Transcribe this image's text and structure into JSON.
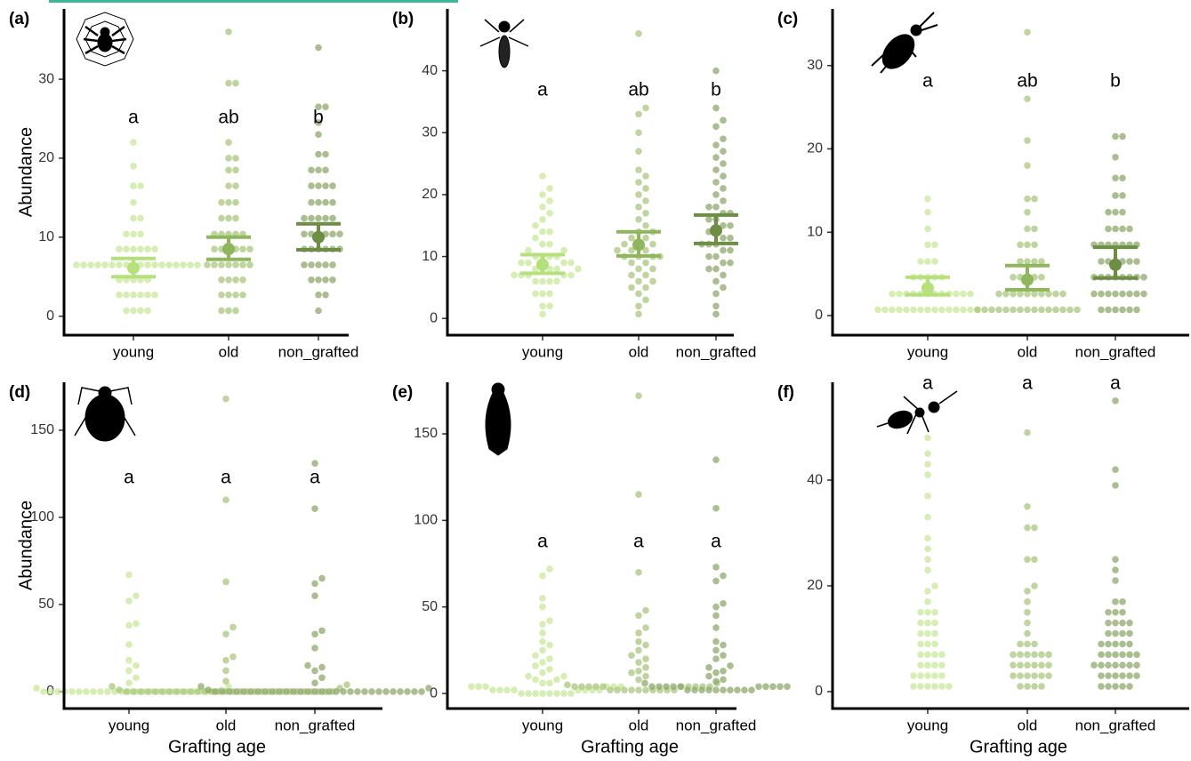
{
  "chart_data": [
    {
      "type": "beeswarm",
      "title": "(a)",
      "ylabel": "Abundance",
      "categories": [
        "young",
        "old",
        "non_grafted"
      ],
      "ylim": [
        -2.4,
        38.9
      ],
      "yticks": [
        0,
        10,
        20,
        30
      ],
      "colors": [
        "#c8e89a",
        "#aac67e",
        "#8fa86c"
      ],
      "mean_colors": [
        "#b6e07c",
        "#8fb65c",
        "#6d8e44"
      ],
      "letters": [
        "a",
        "ab",
        "b"
      ],
      "values": [
        [
          0.7,
          0.7,
          0.7,
          0.7,
          2.7,
          2.7,
          2.7,
          2.7,
          2.7,
          2.7,
          4.6,
          4.6,
          4.6,
          4.6,
          4.6,
          6.5,
          6.5,
          6.5,
          6.5,
          6.5,
          6.5,
          6.5,
          6.5,
          6.5,
          6.5,
          6.5,
          6.5,
          6.5,
          6.5,
          6.5,
          6.5,
          6.5,
          6.5,
          8.5,
          8.5,
          8.5,
          8.5,
          8.5,
          8.5,
          10.4,
          10.4,
          10.4,
          12.4,
          12.4,
          14.4,
          16.5,
          16.5,
          19,
          22
        ],
        [
          0.7,
          0.7,
          0.7,
          2.7,
          2.7,
          2.7,
          2.7,
          4.6,
          4.6,
          4.6,
          4.6,
          6.5,
          6.5,
          6.5,
          6.5,
          6.5,
          6.5,
          6.5,
          8.5,
          8.5,
          8.5,
          8.5,
          8.5,
          8.5,
          10.4,
          10.4,
          10.4,
          10.4,
          10.4,
          12.4,
          12.4,
          12.4,
          14.4,
          14.4,
          14.4,
          16.5,
          16.5,
          18.5,
          18.5,
          20,
          20,
          22,
          29.5,
          29.5,
          36
        ],
        [
          0.7,
          2.7,
          2.7,
          4.6,
          4.6,
          4.6,
          4.6,
          6.5,
          6.5,
          6.5,
          6.5,
          6.5,
          8.5,
          8.5,
          8.5,
          8.5,
          8.5,
          8.5,
          10.4,
          10.4,
          10.4,
          10.4,
          10.4,
          10.4,
          12.4,
          12.4,
          12.4,
          12.4,
          12.4,
          14.4,
          14.4,
          14.4,
          14.4,
          16.5,
          16.5,
          16.5,
          16.5,
          18.5,
          18.5,
          18.5,
          20.5,
          20.5,
          23,
          24.5,
          26.5,
          26.5,
          34
        ]
      ],
      "mean": [
        6.1,
        8.5,
        10.0
      ],
      "ci_low": [
        5.0,
        7.2,
        8.4
      ],
      "ci_high": [
        7.3,
        10.0,
        11.7
      ]
    },
    {
      "type": "beeswarm",
      "title": "(b)",
      "categories": [
        "young",
        "old",
        "non_grafted"
      ],
      "ylim": [
        -2.7,
        50
      ],
      "yticks": [
        0,
        10,
        20,
        30,
        40
      ],
      "colors": [
        "#c8e89a",
        "#aac67e",
        "#8fa86c"
      ],
      "mean_colors": [
        "#b6e07c",
        "#8fb65c",
        "#6d8e44"
      ],
      "letters": [
        "a",
        "ab",
        "b"
      ],
      "values": [
        [
          0.7,
          2,
          2,
          4,
          4,
          4,
          6,
          6,
          6,
          6,
          7,
          7,
          7,
          7,
          7,
          8,
          8,
          8,
          8,
          8,
          9,
          9,
          9,
          9,
          10,
          10,
          10,
          10,
          11,
          11,
          12,
          12,
          13,
          14,
          14,
          15,
          16,
          17,
          18,
          19,
          20,
          21,
          23
        ],
        [
          0.7,
          2,
          3,
          4,
          5,
          5,
          6,
          6,
          7,
          7,
          8,
          8,
          9,
          9,
          10,
          10,
          10,
          10,
          11,
          11,
          11,
          12,
          12,
          12,
          13,
          13,
          14,
          14,
          15,
          16,
          17,
          18,
          19,
          20,
          21,
          22,
          23,
          24,
          27,
          30,
          33,
          34,
          46
        ],
        [
          0.7,
          2,
          4,
          5,
          6,
          7,
          8,
          8,
          9,
          9,
          10,
          10,
          11,
          11,
          12,
          12,
          12,
          13,
          13,
          14,
          14,
          15,
          15,
          16,
          16,
          17,
          17,
          18,
          18,
          19,
          20,
          21,
          22,
          23,
          24,
          25,
          26,
          27,
          28,
          29,
          31,
          32,
          34,
          40
        ]
      ],
      "mean": [
        8.7,
        11.9,
        14.2
      ],
      "ci_low": [
        7.3,
        10.1,
        12.1
      ],
      "ci_high": [
        10.3,
        14.0,
        16.7
      ]
    },
    {
      "type": "beeswarm",
      "title": "(c)",
      "categories": [
        "young",
        "old",
        "non_grafted"
      ],
      "ylim": [
        -2.35,
        36.8
      ],
      "yticks": [
        0,
        10,
        20,
        30
      ],
      "colors": [
        "#c8e89a",
        "#aac67e",
        "#8fa86c"
      ],
      "mean_colors": [
        "#b6e07c",
        "#8fb65c",
        "#6d8e44"
      ],
      "letters": [
        "a",
        "ab",
        "b"
      ],
      "values": [
        [
          0.7,
          0.7,
          0.7,
          0.7,
          0.7,
          0.7,
          0.7,
          0.7,
          0.7,
          0.7,
          0.7,
          0.7,
          0.7,
          0.7,
          0.7,
          2.6,
          2.6,
          2.6,
          2.6,
          2.6,
          2.6,
          2.6,
          2.6,
          2.6,
          2.6,
          2.6,
          2.6,
          4.6,
          4.6,
          4.6,
          4.6,
          4.6,
          6.5,
          6.5,
          6.5,
          8.5,
          8.5,
          10.4,
          12.4,
          14
        ],
        [
          0.7,
          0.7,
          0.7,
          0.7,
          0.7,
          0.7,
          0.7,
          0.7,
          0.7,
          0.7,
          0.7,
          0.7,
          0.7,
          0.7,
          0.7,
          2.6,
          2.6,
          2.6,
          2.6,
          2.6,
          2.6,
          2.6,
          2.6,
          2.6,
          2.6,
          4.6,
          4.6,
          4.6,
          4.6,
          4.6,
          6.5,
          6.5,
          6.5,
          6.5,
          8.5,
          8.5,
          8.5,
          10.4,
          10.4,
          12.4,
          14,
          14,
          18,
          21,
          26,
          34
        ],
        [
          0.7,
          0.7,
          0.7,
          0.7,
          0.7,
          0.7,
          2.6,
          2.6,
          2.6,
          2.6,
          2.6,
          2.6,
          2.6,
          2.6,
          4.6,
          4.6,
          4.6,
          4.6,
          4.6,
          4.6,
          4.6,
          4.6,
          6.5,
          6.5,
          6.5,
          6.5,
          6.5,
          6.5,
          8.5,
          8.5,
          8.5,
          8.5,
          8.5,
          8.5,
          8.5,
          10.4,
          10.4,
          10.4,
          10.4,
          12.4,
          12.4,
          12.4,
          14.4,
          14.4,
          16.5,
          16.5,
          19,
          21.5,
          21.5
        ]
      ],
      "mean": [
        3.3,
        4.3,
        6.1
      ],
      "ci_low": [
        2.5,
        3.1,
        4.5
      ],
      "ci_high": [
        4.6,
        6.0,
        8.2
      ]
    },
    {
      "type": "beeswarm",
      "title": "(d)",
      "ylabel": "Abundance",
      "xlabel": "Grafting age",
      "categories": [
        "young",
        "old",
        "non_grafted"
      ],
      "ylim": [
        -9.7,
        177.5
      ],
      "yticks": [
        0,
        50,
        100,
        150
      ],
      "colors": [
        "#c8e89a",
        "#aac67e",
        "#8fa86c"
      ],
      "letters": [
        "a",
        "a",
        "a"
      ],
      "values": [
        [
          0,
          0,
          0,
          0,
          0,
          0,
          0,
          0,
          0,
          0,
          0,
          0,
          0,
          0,
          0,
          0,
          0,
          0,
          0,
          0,
          0,
          0,
          0,
          0,
          0,
          1,
          2,
          3,
          5,
          8,
          12,
          15,
          18,
          27,
          38,
          39,
          52,
          55,
          67
        ],
        [
          0,
          0,
          0,
          0,
          0,
          0,
          0,
          0,
          0,
          0,
          0,
          0,
          0,
          0,
          0,
          0,
          0,
          0,
          0,
          0,
          0,
          0,
          0,
          0,
          0,
          0,
          0,
          0,
          0,
          0,
          1,
          2,
          3,
          4,
          6,
          12,
          18,
          20,
          33,
          37,
          63,
          110,
          168
        ],
        [
          0,
          0,
          0,
          0,
          0,
          0,
          0,
          0,
          0,
          0,
          0,
          0,
          0,
          0,
          0,
          0,
          0,
          0,
          0,
          0,
          0,
          0,
          0,
          0,
          0,
          0,
          0,
          0,
          0,
          0,
          1,
          2,
          3,
          5,
          8,
          12,
          14,
          15,
          25,
          33,
          35,
          55,
          62,
          65,
          105,
          131
        ]
      ]
    },
    {
      "type": "beeswarm",
      "title": "(e)",
      "xlabel": "Grafting age",
      "categories": [
        "young",
        "old",
        "non_grafted"
      ],
      "ylim": [
        -8.7,
        179.8
      ],
      "yticks": [
        0,
        50,
        100,
        150
      ],
      "colors": [
        "#c8e89a",
        "#aac67e",
        "#8fa86c"
      ],
      "letters": [
        "a",
        "a",
        "a"
      ],
      "values": [
        [
          0,
          0,
          0,
          0,
          0,
          0,
          0,
          0,
          2,
          2,
          2,
          2,
          2,
          2,
          2,
          2,
          4,
          4,
          4,
          4,
          4,
          4,
          6,
          6,
          8,
          8,
          10,
          10,
          12,
          14,
          16,
          18,
          20,
          22,
          25,
          28,
          30,
          35,
          40,
          42,
          50,
          55,
          68,
          72
        ],
        [
          2,
          2,
          2,
          2,
          2,
          2,
          2,
          2,
          2,
          2,
          4,
          4,
          4,
          4,
          4,
          4,
          4,
          4,
          4,
          4,
          5,
          6,
          8,
          10,
          12,
          13,
          15,
          18,
          20,
          22,
          25,
          28,
          30,
          35,
          38,
          45,
          48,
          70,
          115,
          172
        ],
        [
          2,
          2,
          2,
          2,
          2,
          2,
          2,
          2,
          2,
          2,
          4,
          4,
          4,
          4,
          4,
          4,
          4,
          4,
          4,
          4,
          6,
          7,
          8,
          10,
          12,
          13,
          15,
          16,
          20,
          22,
          25,
          28,
          30,
          38,
          45,
          50,
          52,
          65,
          68,
          73,
          107,
          135
        ]
      ]
    },
    {
      "type": "beeswarm",
      "title": "(f)",
      "xlabel": "Grafting age",
      "categories": [
        "young",
        "old",
        "non_grafted"
      ],
      "ylim": [
        -3.2,
        58.5
      ],
      "yticks": [
        0,
        20,
        40
      ],
      "colors": [
        "#c8e89a",
        "#aac67e",
        "#8fa86c"
      ],
      "letters": [
        "a",
        "a",
        "a"
      ],
      "values": [
        [
          1,
          1,
          1,
          1,
          1,
          1,
          3,
          3,
          3,
          3,
          3,
          5,
          5,
          5,
          5,
          7,
          7,
          7,
          7,
          9,
          9,
          9,
          11,
          11,
          11,
          13,
          13,
          13,
          15,
          15,
          15,
          17,
          19,
          20,
          23,
          25,
          27,
          29,
          33,
          37,
          41,
          43,
          45,
          48
        ],
        [
          1,
          1,
          1,
          1,
          3,
          3,
          3,
          3,
          3,
          3,
          5,
          5,
          5,
          5,
          5,
          5,
          7,
          7,
          7,
          7,
          7,
          7,
          9,
          9,
          9,
          11,
          13,
          15,
          17,
          19,
          20,
          25,
          25,
          31,
          31,
          35,
          49
        ],
        [
          1,
          1,
          1,
          1,
          1,
          3,
          3,
          3,
          3,
          3,
          3,
          5,
          5,
          5,
          5,
          5,
          5,
          5,
          7,
          7,
          7,
          7,
          7,
          7,
          9,
          9,
          9,
          9,
          9,
          11,
          11,
          11,
          11,
          13,
          13,
          13,
          13,
          15,
          15,
          15,
          17,
          17,
          21,
          23,
          25,
          39,
          42,
          55
        ]
      ]
    }
  ]
}
